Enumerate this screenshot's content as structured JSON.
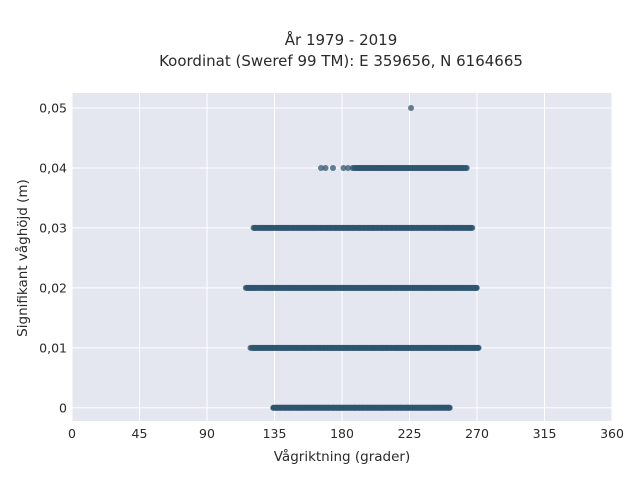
{
  "chart_data": {
    "type": "scatter",
    "title": "År 1979 - 2019",
    "subtitle": "Koordinat (Sweref 99 TM): E 359656, N 6164665",
    "xlabel": "Vågriktning (grader)",
    "ylabel": "Signifikant våghöjd (m)",
    "xlim": [
      0,
      360
    ],
    "ylim": [
      -0.0022,
      0.0525
    ],
    "xticks": [
      0,
      45,
      90,
      135,
      180,
      225,
      270,
      315,
      360
    ],
    "xtick_labels": [
      "0",
      "45",
      "90",
      "135",
      "180",
      "225",
      "270",
      "315",
      "360"
    ],
    "yticks": [
      0,
      0.01,
      0.02,
      0.03,
      0.04,
      0.05
    ],
    "ytick_labels": [
      "0",
      "0,01",
      "0,02",
      "0,03",
      "0,04",
      "0,05"
    ],
    "grid": true,
    "marker_color": "#2f5570",
    "background_color": "#e5e7f0",
    "levels": [
      {
        "y": 0.05,
        "x_min": 226,
        "x_max": 226,
        "count": 1
      },
      {
        "y": 0.04,
        "x_min": 166,
        "x_max": 263,
        "count": 120,
        "sparse_points": [
          166,
          169,
          174,
          181,
          184,
          187
        ]
      },
      {
        "y": 0.03,
        "x_min": 121,
        "x_max": 267,
        "count": 260
      },
      {
        "y": 0.02,
        "x_min": 116,
        "x_max": 270,
        "count": 320
      },
      {
        "y": 0.01,
        "x_min": 119,
        "x_max": 271,
        "count": 320,
        "sparse_points": [
          119,
          271
        ]
      },
      {
        "y": 0.0,
        "x_min": 134,
        "x_max": 252,
        "count": 280
      }
    ]
  }
}
